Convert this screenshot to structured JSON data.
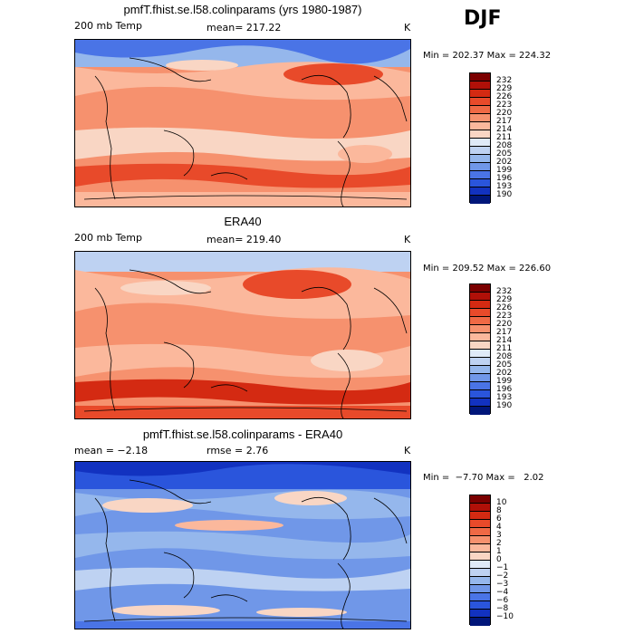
{
  "season": "DJF",
  "colors": {
    "warm": [
      "#f9d6c4",
      "#fbb89c",
      "#f6916e",
      "#ef6945",
      "#e84a2a",
      "#d42a12",
      "#b01008",
      "#7b0000"
    ],
    "cool": [
      "#dfeaf8",
      "#bed2f2",
      "#95b7ec",
      "#7097e8",
      "#4a74e6",
      "#2a55dc",
      "#1232c0",
      "#00167a"
    ],
    "mid": "#fff8ec"
  },
  "panels": [
    {
      "title": "pmfT.fhist.se.l58.colinparams (yrs 1980-1987)",
      "left_label": "200 mb Temp",
      "center_label": "mean= 217.22",
      "units": "K",
      "minmax": "Min = 202.37 Max = 224.32",
      "colorbar_labels": [
        "232",
        "229",
        "226",
        "223",
        "220",
        "217",
        "214",
        "211",
        "208",
        "205",
        "202",
        "199",
        "196",
        "193",
        "190"
      ]
    },
    {
      "title": "ERA40",
      "left_label": "200 mb Temp",
      "center_label": "mean= 219.40",
      "units": "K",
      "minmax": "Min = 209.52 Max = 226.60",
      "colorbar_labels": [
        "232",
        "229",
        "226",
        "223",
        "220",
        "217",
        "214",
        "211",
        "208",
        "205",
        "202",
        "199",
        "196",
        "193",
        "190"
      ]
    },
    {
      "title": "pmfT.fhist.se.l58.colinparams - ERA40",
      "left_label": "mean =  −2.18",
      "center_label": "rmse =   2.76",
      "units": "K",
      "minmax": "Min =  −7.70 Max =   2.02",
      "colorbar_labels": [
        "10",
        "8",
        "6",
        "4",
        "3",
        "2",
        "1",
        "0",
        "−1",
        "−2",
        "−3",
        "−4",
        "−6",
        "−8",
        "−10"
      ]
    }
  ]
}
